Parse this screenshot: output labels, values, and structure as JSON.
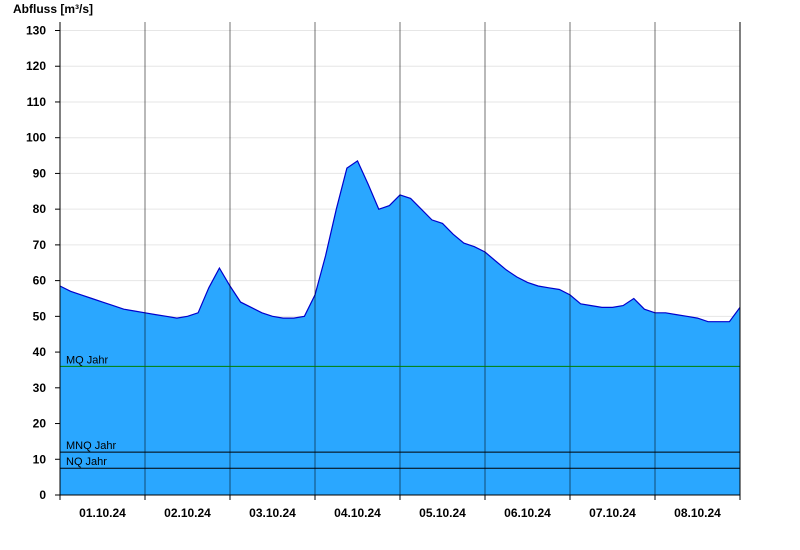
{
  "chart_data": {
    "type": "area",
    "ylabel": "Abfluss [m³/s]",
    "ylim": [
      0,
      130
    ],
    "yticks": [
      0,
      10,
      20,
      30,
      40,
      50,
      60,
      70,
      80,
      90,
      100,
      110,
      120,
      130
    ],
    "xlim": [
      "2024-10-01T00:00",
      "2024-10-09T00:00"
    ],
    "x_tick_labels": [
      "01.10.24",
      "02.10.24",
      "03.10.24",
      "04.10.24",
      "05.10.24",
      "06.10.24",
      "07.10.24",
      "08.10.24"
    ],
    "grid": true,
    "fill_color": "#2aa7ff",
    "line_color": "#0000cc",
    "series": [
      {
        "x": [
          "2024-10-01T00:00",
          "2024-10-01T03:00",
          "2024-10-01T06:00",
          "2024-10-01T09:00",
          "2024-10-01T12:00",
          "2024-10-01T15:00",
          "2024-10-01T18:00",
          "2024-10-01T21:00",
          "2024-10-02T00:00",
          "2024-10-02T03:00",
          "2024-10-02T06:00",
          "2024-10-02T09:00",
          "2024-10-02T12:00",
          "2024-10-02T15:00",
          "2024-10-02T18:00",
          "2024-10-02T21:00",
          "2024-10-03T00:00",
          "2024-10-03T03:00",
          "2024-10-03T06:00",
          "2024-10-03T09:00",
          "2024-10-03T12:00",
          "2024-10-03T15:00",
          "2024-10-03T18:00",
          "2024-10-03T21:00",
          "2024-10-04T00:00",
          "2024-10-04T03:00",
          "2024-10-04T06:00",
          "2024-10-04T09:00",
          "2024-10-04T12:00",
          "2024-10-04T15:00",
          "2024-10-04T18:00",
          "2024-10-04T21:00",
          "2024-10-05T00:00",
          "2024-10-05T03:00",
          "2024-10-05T06:00",
          "2024-10-05T09:00",
          "2024-10-05T12:00",
          "2024-10-05T15:00",
          "2024-10-05T18:00",
          "2024-10-05T21:00",
          "2024-10-06T00:00",
          "2024-10-06T03:00",
          "2024-10-06T06:00",
          "2024-10-06T09:00",
          "2024-10-06T12:00",
          "2024-10-06T15:00",
          "2024-10-06T18:00",
          "2024-10-06T21:00",
          "2024-10-07T00:00",
          "2024-10-07T03:00",
          "2024-10-07T06:00",
          "2024-10-07T09:00",
          "2024-10-07T12:00",
          "2024-10-07T15:00",
          "2024-10-07T18:00",
          "2024-10-07T21:00",
          "2024-10-08T00:00",
          "2024-10-08T03:00",
          "2024-10-08T06:00",
          "2024-10-08T09:00",
          "2024-10-08T12:00",
          "2024-10-08T15:00",
          "2024-10-08T18:00",
          "2024-10-08T21:00",
          "2024-10-09T00:00"
        ],
        "y": [
          58.5,
          57,
          56,
          55,
          54,
          53,
          52,
          51.5,
          51,
          50.5,
          50,
          49.5,
          50,
          51,
          58,
          63.5,
          58.5,
          54,
          52.5,
          51,
          50,
          49.5,
          49.5,
          50,
          56,
          67,
          80,
          91.5,
          93.5,
          87,
          80,
          81,
          84,
          83,
          80,
          77,
          76,
          73,
          70.5,
          69.5,
          68,
          65.5,
          63,
          61,
          59.5,
          58.5,
          58,
          57.5,
          56,
          53.5,
          53,
          52.5,
          52.5,
          53,
          55,
          52,
          51,
          51,
          50.5,
          50,
          49.5,
          48.5,
          48.5,
          48.5,
          52.5
        ]
      }
    ],
    "reference_lines": [
      {
        "label": "MQ Jahr",
        "value": 36,
        "color": "#008000"
      },
      {
        "label": "MNQ Jahr",
        "value": 12,
        "color": "#000000"
      },
      {
        "label": "NQ Jahr",
        "value": 7.5,
        "color": "#000000"
      }
    ]
  }
}
